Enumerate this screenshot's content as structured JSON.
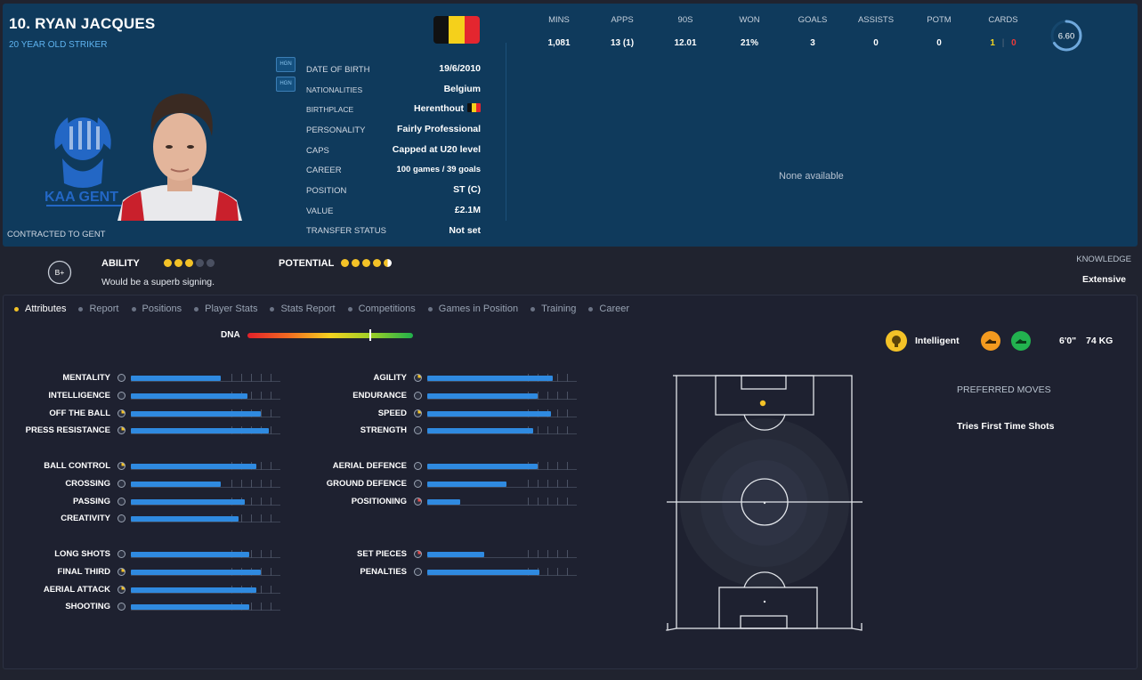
{
  "player": {
    "name": "10. RYAN JACQUES",
    "subtitle": "20 YEAR OLD STRIKER",
    "contract": "CONTRACTED TO GENT",
    "club_logo_text": "KAA GENT",
    "flag_colors": [
      "#111111",
      "#f5d01b",
      "#e4262f"
    ]
  },
  "tags": [
    "HGN",
    "HGN"
  ],
  "info": [
    {
      "label": "DATE OF BIRTH",
      "value": "19/6/2010"
    },
    {
      "label": "NATIONALITIES",
      "value": "Belgium"
    },
    {
      "label": "BIRTHPLACE",
      "value": "Herenthout"
    },
    {
      "label": "PERSONALITY",
      "value": "Fairly Professional"
    },
    {
      "label": "CAPS",
      "value": "Capped at U20 level"
    },
    {
      "label": "CAREER",
      "value": "100 games /  39 goals"
    },
    {
      "label": "POSITION",
      "value": "ST (C)"
    },
    {
      "label": "VALUE",
      "value": "£2.1M"
    },
    {
      "label": "TRANSFER STATUS",
      "value": "Not set"
    }
  ],
  "stats": {
    "headers": [
      "MINS",
      "APPS",
      "90S",
      "WON",
      "GOALS",
      "ASSISTS",
      "POTM",
      "CARDS"
    ],
    "values": [
      "1,081",
      "13 (1)",
      "12.01",
      "21%",
      "3",
      "0",
      "0"
    ],
    "cards_yellow": "1",
    "cards_separator": "|",
    "cards_red": "0",
    "rating": "6.60",
    "rating_fraction": 0.66,
    "none_available": "None available"
  },
  "ability": {
    "grade": "B+",
    "ability_label": "ABILITY",
    "ability_stars": 3,
    "potential_label": "POTENTIAL",
    "potential_stars": 4.5,
    "summary": "Would be a superb signing.",
    "knowledge_label": "KNOWLEDGE",
    "knowledge_value": "Extensive",
    "colors": {
      "star": "#f3c227",
      "empty": "#4a5061",
      "white": "#ffffff"
    }
  },
  "tabs": [
    "Attributes",
    "Report",
    "Positions",
    "Player Stats",
    "Stats Report",
    "Competitions",
    "Games in Position",
    "Training",
    "Career"
  ],
  "dna": {
    "label": "DNA",
    "marker": 0.74
  },
  "attributes": {
    "left": [
      [
        {
          "name": "MENTALITY",
          "value": 0.6
        },
        {
          "name": "INTELLIGENCE",
          "value": 0.78
        },
        {
          "name": "OFF THE BALL",
          "value": 0.87
        },
        {
          "name": "PRESS RESISTANCE",
          "value": 0.92
        }
      ],
      [
        {
          "name": "BALL CONTROL",
          "value": 0.84
        },
        {
          "name": "CROSSING",
          "value": 0.6
        },
        {
          "name": "PASSING",
          "value": 0.76
        },
        {
          "name": "CREATIVITY",
          "value": 0.72
        }
      ],
      [
        {
          "name": "LONG SHOTS",
          "value": 0.79
        },
        {
          "name": "FINAL THIRD",
          "value": 0.87
        },
        {
          "name": "AERIAL ATTACK",
          "value": 0.84
        },
        {
          "name": "SHOOTING",
          "value": 0.79
        }
      ]
    ],
    "right": [
      [
        {
          "name": "AGILITY",
          "value": 0.84
        },
        {
          "name": "ENDURANCE",
          "value": 0.74
        },
        {
          "name": "SPEED",
          "value": 0.83
        },
        {
          "name": "STRENGTH",
          "value": 0.71
        }
      ],
      [
        {
          "name": "AERIAL DEFENCE",
          "value": 0.74
        },
        {
          "name": "GROUND DEFENCE",
          "value": 0.53
        },
        {
          "name": "POSITIONING",
          "value": 0.22
        }
      ],
      [
        {
          "name": "SET PIECES",
          "value": 0.38
        },
        {
          "name": "PENALTIES",
          "value": 0.75
        }
      ]
    ]
  },
  "traits": {
    "intelligent": "Intelligent",
    "height": "6'0\"",
    "weight": "74 KG"
  },
  "preferred_moves": {
    "heading": "PREFERRED MOVES",
    "items": [
      "Tries First Time Shots"
    ]
  }
}
